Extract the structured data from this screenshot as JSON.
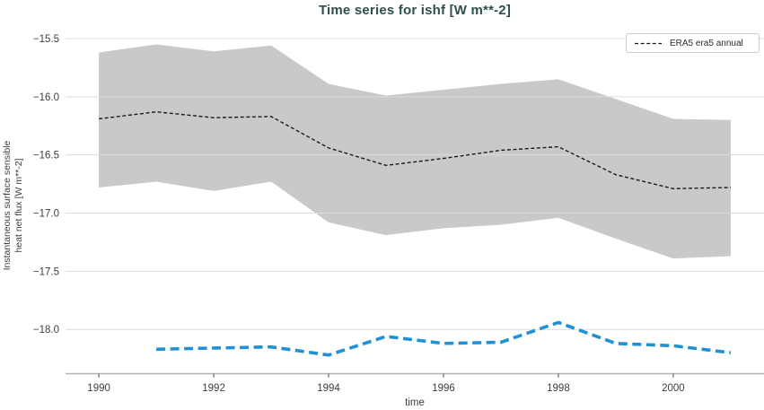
{
  "title": "Time series for ishf [W m**-2]",
  "axes": {
    "x_label": "time",
    "y_label_line1": "Instantaneous surface sensible",
    "y_label_line2": "heat net flux [W m**-2]",
    "x_tick_labels": [
      "1990",
      "1992",
      "1994",
      "1996",
      "1998",
      "2000"
    ],
    "x_tick_values": [
      1990,
      1992,
      1994,
      1996,
      1998,
      2000
    ],
    "y_tick_labels": [
      "−15.5",
      "−16.0",
      "−16.5",
      "−17.0",
      "−17.5",
      "−18.0"
    ],
    "y_tick_values": [
      -15.5,
      -16.0,
      -16.5,
      -17.0,
      -17.5,
      -18.0
    ]
  },
  "legend": {
    "position": "upper right",
    "entries": [
      {
        "label": "ERA5 era5 annual",
        "style": "dashed",
        "color": "#1a1a1a"
      }
    ]
  },
  "colors": {
    "title": "#2e4f4e",
    "text": "#3d3d3d",
    "grid": "#dcdcdc",
    "spine": "#b3b3b3",
    "tick": "#555555",
    "band": "#c9c9c9",
    "mean_line": "#1a1a1a",
    "blue_line": "#1f91d4",
    "legend_border": "#cccccc",
    "background": "#ffffff"
  },
  "chart_data": {
    "type": "line",
    "title": "Time series for ishf [W m**-2]",
    "xlabel": "time",
    "ylabel": "Instantaneous surface sensible heat net flux [W m**-2]",
    "xlim": [
      1989.42,
      2001.58
    ],
    "ylim": [
      -18.38,
      -15.4
    ],
    "grid": "horizontal",
    "legend_position": "upper right",
    "series": [
      {
        "name": "ERA5 era5 annual",
        "style": "dashed",
        "color": "#1a1a1a",
        "x": [
          1990,
          1991,
          1992,
          1993,
          1994,
          1995,
          1996,
          1997,
          1998,
          1999,
          2000,
          2001
        ],
        "y": [
          -16.19,
          -16.13,
          -16.18,
          -16.17,
          -16.44,
          -16.59,
          -16.53,
          -16.46,
          -16.43,
          -16.67,
          -16.79,
          -16.78
        ],
        "band_upper": [
          -15.62,
          -15.55,
          -15.61,
          -15.56,
          -15.89,
          -15.99,
          -15.94,
          -15.89,
          -15.85,
          -16.02,
          -16.19,
          -16.2
        ],
        "band_lower": [
          -16.78,
          -16.73,
          -16.81,
          -16.73,
          -17.08,
          -17.19,
          -17.13,
          -17.1,
          -17.04,
          -17.22,
          -17.39,
          -17.37
        ],
        "band_color": "#c9c9c9"
      },
      {
        "name": "unlabeled blue dashed series",
        "style": "dashed",
        "color": "#1f91d4",
        "x": [
          1991,
          1992,
          1993,
          1994,
          1995,
          1996,
          1997,
          1998,
          1999,
          2000,
          2001
        ],
        "y": [
          -18.17,
          -18.16,
          -18.15,
          -18.22,
          -18.06,
          -18.12,
          -18.11,
          -17.94,
          -18.12,
          -18.14,
          -18.2
        ]
      }
    ]
  }
}
